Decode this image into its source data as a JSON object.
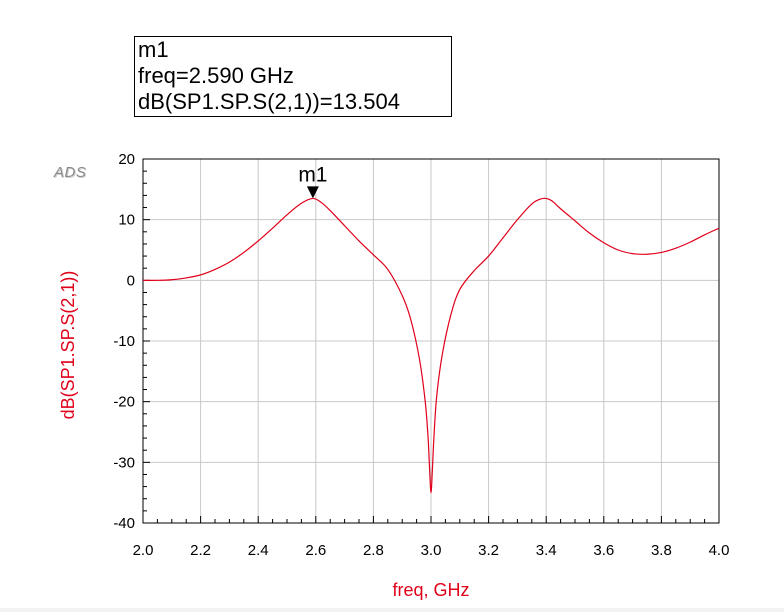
{
  "marker_box": {
    "name": "m1",
    "freq_text": "freq=2.590 GHz",
    "value_text": "dB(SP1.SP.S(2,1))=13.504"
  },
  "logo": "ADS",
  "colors": {
    "trace": "#e0001a",
    "grid": "#c8c8c8",
    "axis_title": "#e0001a"
  },
  "chart_data": {
    "type": "line",
    "title": "",
    "xlabel": "freq, GHz",
    "ylabel": "dB(SP1.SP.S(2,1))",
    "xlim": [
      2.0,
      4.0
    ],
    "ylim": [
      -40,
      20
    ],
    "x_ticks": [
      2.0,
      2.2,
      2.4,
      2.6,
      2.8,
      3.0,
      3.2,
      3.4,
      3.6,
      3.8,
      4.0
    ],
    "x_tick_labels": [
      "2.0",
      "2.2",
      "2.4",
      "2.6",
      "2.8",
      "3.0",
      "3.2",
      "3.4",
      "3.6",
      "3.8",
      "4.0"
    ],
    "y_ticks": [
      20,
      10,
      0,
      -10,
      -20,
      -30,
      -40
    ],
    "y_tick_labels": [
      "20",
      "10",
      "0",
      "-10",
      "-20",
      "-30",
      "-40"
    ],
    "grid": true,
    "series": [
      {
        "x": [
          2.0,
          2.05,
          2.1,
          2.15,
          2.2,
          2.25,
          2.3,
          2.35,
          2.4,
          2.45,
          2.5,
          2.55,
          2.59,
          2.62,
          2.65,
          2.7,
          2.75,
          2.8,
          2.85,
          2.9,
          2.93,
          2.96,
          2.98,
          2.99,
          2.995,
          3.0,
          3.005,
          3.01,
          3.02,
          3.04,
          3.07,
          3.1,
          3.15,
          3.2,
          3.25,
          3.3,
          3.35,
          3.38,
          3.4,
          3.42,
          3.45,
          3.5,
          3.55,
          3.6,
          3.65,
          3.7,
          3.75,
          3.8,
          3.85,
          3.9,
          3.95,
          4.0
        ],
        "y": [
          0.0,
          0.0,
          0.1,
          0.4,
          0.9,
          1.8,
          3.0,
          4.6,
          6.5,
          8.6,
          10.8,
          12.7,
          13.5,
          12.8,
          11.5,
          9.0,
          6.5,
          4.2,
          1.8,
          -2.5,
          -6.5,
          -13.0,
          -20.0,
          -26.0,
          -31.0,
          -35.0,
          -31.0,
          -26.0,
          -19.0,
          -12.0,
          -5.5,
          -1.5,
          1.6,
          4.0,
          7.0,
          10.0,
          12.6,
          13.4,
          13.5,
          13.1,
          11.8,
          9.8,
          7.8,
          6.2,
          5.0,
          4.4,
          4.3,
          4.6,
          5.3,
          6.3,
          7.5,
          8.6
        ]
      }
    ],
    "markers": [
      {
        "name": "m1",
        "x": 2.59,
        "y": 13.504
      }
    ]
  }
}
